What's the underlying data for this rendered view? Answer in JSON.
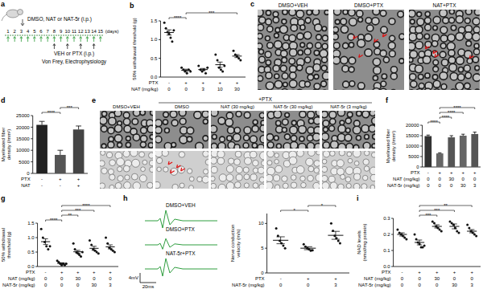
{
  "chart_data": [
    {
      "panel": "b",
      "type": "dot",
      "y_label": "50% withdrawal threshold (g)",
      "color": "#111111",
      "values": [
        1.19,
        0.18,
        0.2,
        0.33,
        0.56
      ],
      "errors": [
        0.07,
        0.03,
        0.03,
        0.07,
        0.04
      ],
      "points": [
        [
          1.45,
          1.3,
          1.2,
          1.15,
          1.05,
          0.95,
          1.25
        ],
        [
          0.25,
          0.2,
          0.15,
          0.1,
          0.2,
          0.15
        ],
        [
          0.3,
          0.2,
          0.15,
          0.2,
          0.1,
          0.25
        ],
        [
          0.6,
          0.45,
          0.25,
          0.2,
          0.15,
          0.3
        ],
        [
          0.7,
          0.6,
          0.55,
          0.5,
          0.45
        ]
      ],
      "ylim": [
        0,
        1.5
      ],
      "yticks": [
        {
          "value": 0,
          "label": "0.0"
        },
        0.5,
        {
          "value": 1,
          "label": "1.0"
        },
        1.5
      ],
      "conditions": [
        {
          "label": "PTX",
          "values": [
            "-",
            "+",
            "+",
            "+",
            "+"
          ]
        },
        {
          "label": "NAT (mg/kg)",
          "values": [
            "0",
            "0",
            "3",
            "10",
            "30"
          ]
        }
      ],
      "significance": [
        {
          "from": 0,
          "to": 1,
          "label": "****"
        },
        {
          "from": 1,
          "to": 4,
          "label": "***"
        }
      ]
    },
    {
      "panel": "d",
      "type": "bar",
      "y_label": "Myelinated fiber density (/mm²)",
      "colors": [
        "#222222",
        "#555555",
        "#444444"
      ],
      "values": [
        21000,
        8000,
        19000
      ],
      "errors": [
        1500,
        2000,
        1500
      ],
      "ylim": [
        0,
        25000
      ],
      "yticks": [
        0,
        5000,
        10000,
        15000,
        20000,
        25000
      ],
      "conditions": [
        {
          "label": "PTX",
          "values": [
            "-",
            "+",
            "+"
          ]
        },
        {
          "label": "NAT",
          "values": [
            "-",
            "-",
            "+"
          ]
        }
      ],
      "significance": [
        {
          "from": 0,
          "to": 1,
          "label": "****"
        },
        {
          "from": 1,
          "to": 2,
          "label": "***"
        }
      ]
    },
    {
      "panel": "f",
      "type": "bar",
      "y_label": "Myelinated fiber density (/mm²)",
      "colors": [
        "#333333",
        "#666666",
        "#555555",
        "#666666",
        "#555555"
      ],
      "values": [
        14800,
        6500,
        14200,
        15000,
        15800
      ],
      "errors": [
        500,
        300,
        800,
        700,
        900
      ],
      "ylim": [
        0,
        20000
      ],
      "yticks": [
        0,
        5000,
        10000,
        15000,
        20000
      ],
      "conditions": [
        {
          "label": "PTX",
          "values": [
            "-",
            "+",
            "+",
            "+",
            "+"
          ]
        },
        {
          "label": "NAT (mg/kg)",
          "values": [
            "0",
            "0",
            "30",
            "0",
            "0"
          ]
        },
        {
          "label": "NAT-5r (mg/kg)",
          "values": [
            "0",
            "0",
            "0",
            "30",
            "3"
          ]
        }
      ],
      "significance": [
        {
          "from": 0,
          "to": 1,
          "label": "****"
        },
        {
          "from": 1,
          "to": 2,
          "label": "****"
        },
        {
          "from": 1,
          "to": 3,
          "label": "****"
        },
        {
          "from": 1,
          "to": 4,
          "label": "****"
        }
      ]
    },
    {
      "panel": "g",
      "type": "dot",
      "y_label": "50% withdrawal threshold (g)",
      "color": "#111111",
      "values": [
        0.86,
        0.11,
        0.51,
        0.63,
        0.68
      ],
      "errors": [
        0.1,
        0.02,
        0.05,
        0.07,
        0.07
      ],
      "points": [
        [
          1.3,
          1.0,
          0.85,
          0.7,
          0.6,
          0.7
        ],
        [
          0.2,
          0.15,
          0.1,
          0.05,
          0.1,
          0.05,
          0.1
        ],
        [
          0.8,
          0.6,
          0.5,
          0.45,
          0.4,
          0.35,
          0.5
        ],
        [
          0.9,
          0.75,
          0.6,
          0.55,
          0.5,
          0.45
        ],
        [
          1.0,
          0.8,
          0.65,
          0.6,
          0.55,
          0.5
        ]
      ],
      "ylim": [
        0,
        1.5
      ],
      "yticks": [
        {
          "value": 0,
          "label": "0.0"
        },
        0.5,
        {
          "value": 1,
          "label": "1.0"
        },
        1.5
      ],
      "conditions": [
        {
          "label": "PTX",
          "values": [
            "-",
            "+",
            "+",
            "+",
            "+"
          ]
        },
        {
          "label": "NAT (mg/kg)",
          "values": [
            "0",
            "0",
            "30",
            "0",
            "0"
          ]
        },
        {
          "label": "NAT-5r (mg/kg)",
          "values": [
            "0",
            "0",
            "0",
            "30",
            "3"
          ]
        }
      ],
      "significance": [
        {
          "from": 0,
          "to": 1,
          "label": "****"
        },
        {
          "from": 1,
          "to": 2,
          "label": "**"
        },
        {
          "from": 1,
          "to": 3,
          "label": "***"
        },
        {
          "from": 1,
          "to": 4,
          "label": "****"
        }
      ]
    },
    {
      "type": "dot",
      "y_label": "Nerve conduction velocity (m/s)",
      "color": "#111111",
      "values": [
        6.6,
        5.0,
        7.6
      ],
      "errors": [
        0.7,
        0.3,
        0.8
      ],
      "points": [
        [
          9,
          7.5,
          6.5,
          6,
          5.5,
          5
        ],
        [
          5.8,
          5.3,
          5,
          4.8,
          4.5,
          4.6
        ],
        [
          10,
          8.5,
          7.5,
          7,
          6.5,
          6
        ]
      ],
      "ylim": [
        0,
        12
      ],
      "yticks": [
        0,
        5,
        10
      ],
      "conditions": [
        {
          "label": "PTX",
          "values": [
            "-",
            "+",
            "+"
          ]
        },
        {
          "label": "NAT-5r (mg/kg)",
          "values": [
            "0",
            "0",
            "3"
          ]
        }
      ],
      "significance": [
        {
          "from": 0,
          "to": 1,
          "label": "*"
        },
        {
          "from": 1,
          "to": 2,
          "label": "*"
        }
      ]
    },
    {
      "panel": "i",
      "type": "dot",
      "y_label": "NAD levels (nmol/mg protein)",
      "color": "#111111",
      "values": [
        0.2,
        0.15,
        0.25,
        0.25,
        0.22
      ],
      "errors": [
        0.01,
        0.015,
        0.01,
        0.015,
        0.01
      ],
      "points": [
        [
          0.23,
          0.21,
          0.2,
          0.19,
          0.18,
          0.17
        ],
        [
          0.2,
          0.17,
          0.15,
          0.14,
          0.12,
          0.12,
          0.13
        ],
        [
          0.28,
          0.27,
          0.25,
          0.24,
          0.23,
          0.22
        ],
        [
          0.28,
          0.27,
          0.26,
          0.24,
          0.22,
          0.21
        ],
        [
          0.26,
          0.24,
          0.22,
          0.21,
          0.2,
          0.19
        ]
      ],
      "ylim": [
        0,
        0.3
      ],
      "yticks": [
        {
          "value": 0,
          "label": "0.0"
        },
        0.1,
        0.2,
        0.3
      ],
      "conditions": [
        {
          "label": "PTX",
          "values": [
            "-",
            "+",
            "+",
            "+",
            "+"
          ]
        },
        {
          "label": "NAT (mg/kg)",
          "values": [
            "0",
            "0",
            "30",
            "0",
            "0"
          ]
        },
        {
          "label": "NAT-5r (mg/kg)",
          "values": [
            "0",
            "0",
            "0",
            "30",
            "3"
          ]
        }
      ],
      "significance": [
        {
          "from": 1,
          "to": 2,
          "label": "***"
        },
        {
          "from": 1,
          "to": 3,
          "label": "***"
        },
        {
          "from": 1,
          "to": 4,
          "label": "**"
        }
      ]
    }
  ],
  "schematic": {
    "panel": "a",
    "treatment_label": "DMSO, NAT or NAT-5r (i.p.)",
    "days": [
      1,
      2,
      3,
      4,
      5,
      6,
      7,
      8,
      9,
      10,
      11,
      12,
      13,
      14,
      15
    ],
    "days_unit": "(days)",
    "treatment_days": [
      1,
      2,
      3,
      4,
      5,
      6,
      7,
      8,
      9,
      10,
      11,
      12,
      13,
      14,
      15
    ],
    "ptx_days": [
      8,
      10,
      12,
      14
    ],
    "ptx_label": "VEH or PTX (i.p.)",
    "endpoint_label": "Von Frey, Electrophysiology"
  },
  "micrographs_c": {
    "panel": "c",
    "titles": [
      "DMSO+VEH",
      "DMSO+PTX",
      "NAT+PTX"
    ]
  },
  "micrographs_e": {
    "panel": "e",
    "group_label": "+PTX",
    "titles": [
      "DMSO+VEH",
      "DMSO",
      "NAT (30 mg/kg)",
      "NAT-5r (30 mg/kg)",
      "NAT-5r (3 mg/kg)"
    ]
  },
  "traces": {
    "panel": "h",
    "labels": [
      "DMSO+VEH",
      "DMSO+PTX",
      "NAT-5r+PTX"
    ],
    "scale_y": "4mV",
    "scale_x": "20ms"
  }
}
